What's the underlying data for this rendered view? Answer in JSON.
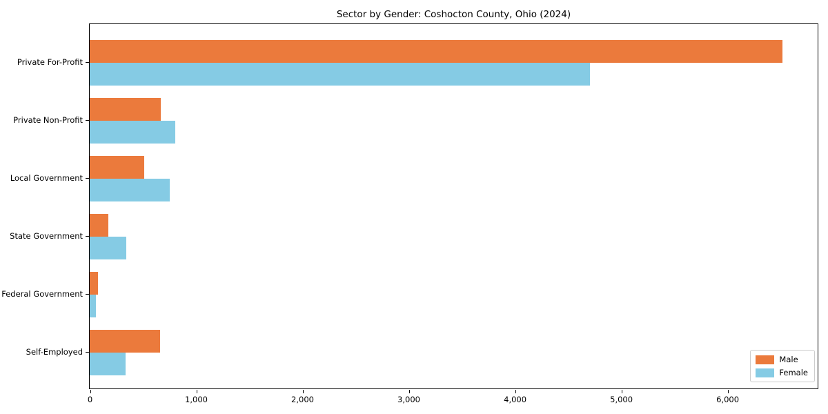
{
  "chart_data": {
    "type": "bar",
    "orientation": "horizontal",
    "title": "Sector by Gender: Coshocton County, Ohio (2024)",
    "categories": [
      "Private For-Profit",
      "Private Non-Profit",
      "Local Government",
      "State Government",
      "Federal Government",
      "Self-Employed"
    ],
    "series": [
      {
        "name": "Male",
        "color": "#EB7A3C",
        "values": [
          6520,
          670,
          510,
          178,
          80,
          665
        ]
      },
      {
        "name": "Female",
        "color": "#85CBE4",
        "values": [
          4710,
          805,
          755,
          345,
          60,
          335
        ]
      }
    ],
    "xlabel": "",
    "ylabel": "",
    "xlim": [
      0,
      6850
    ],
    "x_ticks": [
      0,
      1000,
      2000,
      3000,
      4000,
      5000,
      6000
    ],
    "grid": false,
    "legend_position": "lower right",
    "colors": {
      "male": "#EB7A3C",
      "female": "#85CBE4",
      "spine": "#000000",
      "legend_border": "#cccccc",
      "background": "#ffffff"
    }
  }
}
